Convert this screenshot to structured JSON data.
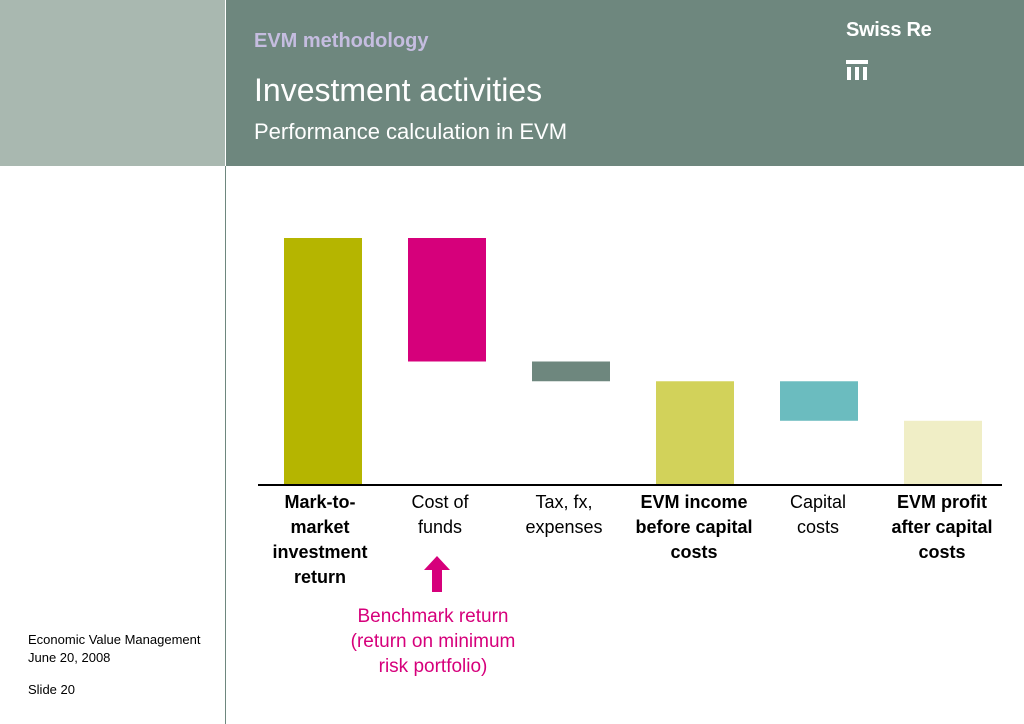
{
  "header": {
    "section": "EVM methodology",
    "title": "Investment activities",
    "subtitle": "Performance calculation in EVM",
    "brand": "Swiss Re"
  },
  "chart_data": {
    "type": "waterfall",
    "categories": [
      "Mark-to-market investment return",
      "Cost of funds",
      "Tax, fx, expenses",
      "EVM income before capital costs",
      "Capital costs",
      "EVM profit after capital costs"
    ],
    "bold_categories": [
      true,
      false,
      true,
      true,
      false,
      true
    ],
    "segments": [
      {
        "start": 0,
        "end": 100
      },
      {
        "start": 100,
        "end": 50
      },
      {
        "start": 50,
        "end": 42
      },
      {
        "start": 0,
        "end": 42
      },
      {
        "start": 42,
        "end": 26
      },
      {
        "start": 0,
        "end": 26
      }
    ],
    "ylim": [
      0,
      100
    ],
    "colors": [
      "#b5b500",
      "#d6007b",
      "#6e877e",
      "#d2d25a",
      "#6bbcbf",
      "#f0eec6"
    ]
  },
  "chart_labels": {
    "c0": "Mark-to-market investment return",
    "c1": "Cost of funds",
    "c2": "Tax, fx, expenses",
    "c3": "EVM income before capital costs",
    "c4": "Capital costs",
    "c5": "EVM profit after capital costs"
  },
  "annotation": {
    "benchmark": "Benchmark return (return on minimum risk portfolio)",
    "color": "#d6007b"
  },
  "footer": {
    "doc": "Economic Value Management",
    "date": "June 20, 2008",
    "slide": "Slide 20"
  }
}
